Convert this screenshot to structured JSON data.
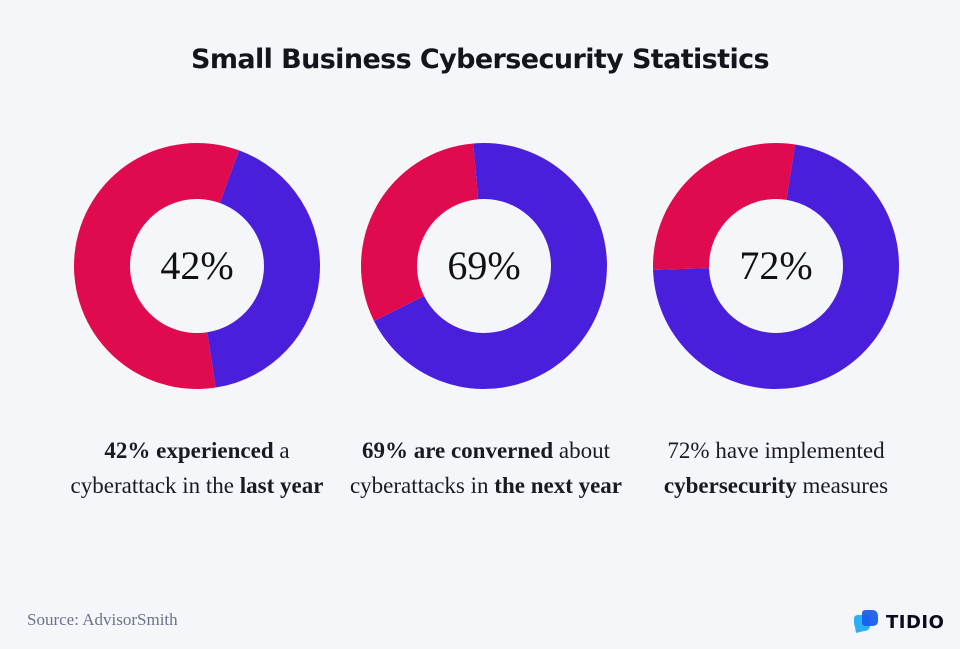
{
  "title": "Small Business Cybersecurity Statistics",
  "colors": {
    "primary": "#4a1fdb",
    "secondary": "#df0b4e",
    "background": "#f5f6f9"
  },
  "chart_data": {
    "type": "pie",
    "title": "Small Business Cybersecurity Statistics",
    "charts": [
      {
        "label": "42%",
        "value": 42,
        "remainder": 58,
        "start_angle_deg": 20,
        "caption": [
          {
            "text": "42% experienced",
            "bold": true
          },
          {
            "text": " a cyberattack in the ",
            "bold": false
          },
          {
            "text": "last year",
            "bold": true
          }
        ]
      },
      {
        "label": "69%",
        "value": 69,
        "remainder": 31,
        "start_angle_deg": -5,
        "caption": [
          {
            "text": "69% are converned",
            "bold": true
          },
          {
            "text": " about cyberattacks in ",
            "bold": false
          },
          {
            "text": "the next year",
            "bold": true
          }
        ]
      },
      {
        "label": "72%",
        "value": 72,
        "remainder": 28,
        "start_angle_deg": 9,
        "caption": [
          {
            "text": "72% have implemented ",
            "bold": false
          },
          {
            "text": "cybersecurity",
            "bold": true
          },
          {
            "text": " measures",
            "bold": false
          }
        ]
      }
    ]
  },
  "footer": {
    "source": "Source: AdvisorSmith",
    "brand": "TIDIO"
  }
}
